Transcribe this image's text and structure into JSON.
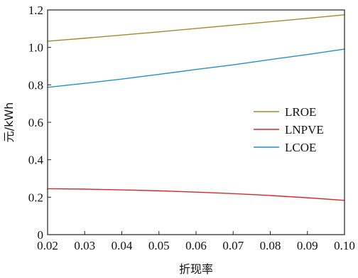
{
  "chart_data": {
    "type": "line",
    "xlabel": "折现率",
    "ylabel": "元/kWh",
    "xlim": [
      0.02,
      0.1
    ],
    "ylim": [
      0,
      1.2
    ],
    "x_ticks": [
      "0.02",
      "0.03",
      "0.04",
      "0.05",
      "0.06",
      "0.07",
      "0.08",
      "0.09",
      "0.10"
    ],
    "y_ticks": [
      "0",
      "0.2",
      "0.4",
      "0.6",
      "0.8",
      "1.0",
      "1.2"
    ],
    "grid": false,
    "legend_position": "right",
    "x": [
      0.02,
      0.03,
      0.04,
      0.05,
      0.06,
      0.07,
      0.08,
      0.09,
      0.1
    ],
    "series": [
      {
        "name": "LROE",
        "color": "#a08a2e",
        "values": [
          1.033,
          1.049,
          1.066,
          1.083,
          1.101,
          1.119,
          1.137,
          1.155,
          1.174
        ]
      },
      {
        "name": "LNPVE",
        "color": "#d62a2a",
        "values": [
          0.245,
          0.243,
          0.239,
          0.234,
          0.227,
          0.219,
          0.209,
          0.197,
          0.183
        ]
      },
      {
        "name": "LCOE",
        "color": "#1f93c8",
        "values": [
          0.787,
          0.808,
          0.831,
          0.856,
          0.882,
          0.907,
          0.935,
          0.962,
          0.991
        ]
      }
    ]
  }
}
